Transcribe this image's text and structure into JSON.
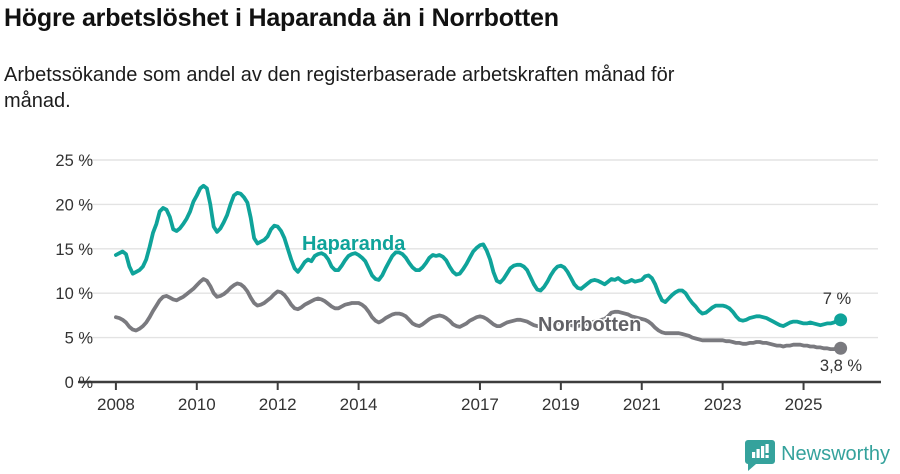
{
  "header": {
    "title": "Högre arbetslöshet i Haparanda än i Norrbotten",
    "subtitle": "Arbetssökande som andel av den registerbaserade arbetskraften månad för månad."
  },
  "colors": {
    "haparanda": "#0fa39a",
    "norrbotten": "#7a7a7f",
    "norrbotten_label": "#626267",
    "grid": "#e3e3e3",
    "axis": "#3d3d3d",
    "tick_text": "#333333",
    "brand": "#35a29c"
  },
  "chart_data": {
    "type": "line",
    "title": "Högre arbetslöshet i Haparanda än i Norrbotten",
    "subtitle": "Arbetssökande som andel av den registerbaserade arbetskraften månad för månad.",
    "unit": "%",
    "frequency": "monthly",
    "x_start": "2008-01",
    "x_end": "2025-12",
    "ylim": [
      0,
      25
    ],
    "grid": true,
    "legend_position": "inline-labels",
    "y_ticks": [
      {
        "value": 0,
        "label": "0 %"
      },
      {
        "value": 5,
        "label": "5 %"
      },
      {
        "value": 10,
        "label": "10 %"
      },
      {
        "value": 15,
        "label": "15 %"
      },
      {
        "value": 20,
        "label": "20 %"
      },
      {
        "value": 25,
        "label": "25 %"
      }
    ],
    "x_ticks": [
      {
        "year": 2008,
        "label": "2008"
      },
      {
        "year": 2010,
        "label": "2010"
      },
      {
        "year": 2012,
        "label": "2012"
      },
      {
        "year": 2014,
        "label": "2014"
      },
      {
        "year": 2017,
        "label": "2017"
      },
      {
        "year": 2019,
        "label": "2019"
      },
      {
        "year": 2021,
        "label": "2021"
      },
      {
        "year": 2023,
        "label": "2023"
      },
      {
        "year": 2025,
        "label": "2025"
      }
    ],
    "series": [
      {
        "name": "Haparanda",
        "end_label": "7 %",
        "end_value": 7.0,
        "values": [
          14.3,
          14.5,
          14.7,
          14.4,
          13.0,
          12.2,
          12.4,
          12.6,
          13.0,
          13.8,
          15.2,
          16.8,
          17.8,
          19.2,
          19.6,
          19.4,
          18.6,
          17.2,
          17.0,
          17.3,
          17.8,
          18.4,
          19.2,
          20.3,
          21.0,
          21.8,
          22.1,
          21.8,
          20.0,
          17.5,
          16.9,
          17.3,
          18.0,
          18.8,
          20.0,
          21.0,
          21.3,
          21.2,
          20.8,
          20.2,
          18.5,
          16.2,
          15.6,
          15.8,
          16.0,
          16.4,
          17.2,
          17.6,
          17.5,
          17.0,
          16.2,
          15.0,
          13.8,
          12.8,
          12.4,
          12.9,
          13.5,
          13.8,
          13.6,
          14.2,
          14.4,
          14.5,
          14.3,
          13.8,
          13.0,
          12.6,
          12.6,
          13.1,
          13.7,
          14.2,
          14.4,
          14.5,
          14.3,
          14.0,
          13.6,
          12.8,
          12.0,
          11.6,
          11.5,
          12.0,
          12.8,
          13.5,
          14.2,
          14.6,
          14.6,
          14.4,
          14.0,
          13.4,
          12.9,
          12.6,
          12.6,
          12.9,
          13.4,
          14.0,
          14.3,
          14.2,
          14.3,
          14.1,
          13.7,
          13.0,
          12.4,
          12.1,
          12.2,
          12.7,
          13.3,
          14.0,
          14.7,
          15.1,
          15.4,
          15.5,
          14.8,
          13.8,
          12.4,
          11.4,
          11.2,
          11.6,
          12.2,
          12.8,
          13.1,
          13.2,
          13.2,
          13.0,
          12.6,
          11.8,
          11.0,
          10.4,
          10.3,
          10.7,
          11.3,
          12.0,
          12.6,
          13.0,
          13.1,
          12.9,
          12.4,
          11.7,
          11.0,
          10.6,
          10.5,
          10.8,
          11.1,
          11.4,
          11.5,
          11.4,
          11.2,
          11.0,
          11.3,
          11.6,
          11.5,
          11.7,
          11.4,
          11.2,
          11.3,
          11.5,
          11.3,
          11.4,
          11.5,
          11.9,
          12.0,
          11.7,
          11.0,
          10.0,
          9.2,
          9.0,
          9.4,
          9.8,
          10.1,
          10.3,
          10.3,
          10.0,
          9.4,
          8.9,
          8.5,
          8.0,
          7.7,
          7.8,
          8.1,
          8.4,
          8.6,
          8.6,
          8.6,
          8.5,
          8.3,
          7.9,
          7.4,
          7.0,
          6.9,
          7.0,
          7.2,
          7.3,
          7.4,
          7.4,
          7.3,
          7.2,
          7.0,
          6.8,
          6.6,
          6.4,
          6.3,
          6.5,
          6.7,
          6.8,
          6.8,
          6.7,
          6.6,
          6.6,
          6.7,
          6.6,
          6.5,
          6.4,
          6.5,
          6.6,
          6.6,
          6.7,
          6.9,
          7.0
        ]
      },
      {
        "name": "Norrbotten",
        "end_label": "3,8 %",
        "end_value": 3.8,
        "values": [
          7.3,
          7.2,
          7.0,
          6.7,
          6.2,
          5.9,
          5.8,
          6.0,
          6.3,
          6.7,
          7.3,
          8.0,
          8.6,
          9.2,
          9.6,
          9.7,
          9.5,
          9.3,
          9.2,
          9.4,
          9.6,
          9.9,
          10.2,
          10.5,
          10.9,
          11.3,
          11.6,
          11.4,
          10.8,
          10.0,
          9.6,
          9.7,
          9.9,
          10.2,
          10.6,
          10.9,
          11.1,
          11.0,
          10.7,
          10.2,
          9.5,
          8.9,
          8.6,
          8.7,
          8.9,
          9.2,
          9.5,
          9.9,
          10.2,
          10.1,
          9.8,
          9.3,
          8.7,
          8.3,
          8.2,
          8.4,
          8.7,
          8.9,
          9.1,
          9.3,
          9.4,
          9.3,
          9.1,
          8.8,
          8.5,
          8.3,
          8.3,
          8.5,
          8.7,
          8.8,
          8.9,
          8.9,
          8.9,
          8.7,
          8.4,
          7.9,
          7.3,
          6.9,
          6.7,
          6.9,
          7.2,
          7.4,
          7.6,
          7.7,
          7.7,
          7.6,
          7.4,
          7.0,
          6.6,
          6.4,
          6.3,
          6.5,
          6.8,
          7.1,
          7.3,
          7.4,
          7.5,
          7.4,
          7.2,
          6.9,
          6.5,
          6.3,
          6.2,
          6.4,
          6.6,
          6.9,
          7.1,
          7.3,
          7.4,
          7.3,
          7.1,
          6.8,
          6.5,
          6.3,
          6.3,
          6.5,
          6.7,
          6.8,
          6.9,
          7.0,
          7.0,
          6.9,
          6.8,
          6.6,
          6.4,
          6.3,
          6.3,
          6.4,
          6.5,
          6.6,
          6.7,
          6.7,
          6.7,
          6.6,
          6.5,
          6.4,
          6.3,
          6.3,
          6.4,
          6.5,
          6.6,
          6.7,
          6.8,
          6.9,
          7.0,
          7.1,
          7.4,
          7.8,
          7.9,
          7.9,
          7.8,
          7.7,
          7.6,
          7.4,
          7.3,
          7.2,
          7.1,
          7.0,
          6.8,
          6.5,
          6.1,
          5.8,
          5.6,
          5.5,
          5.5,
          5.5,
          5.5,
          5.5,
          5.4,
          5.3,
          5.2,
          5.0,
          4.9,
          4.8,
          4.7,
          4.7,
          4.7,
          4.7,
          4.7,
          4.7,
          4.7,
          4.6,
          4.6,
          4.5,
          4.4,
          4.4,
          4.3,
          4.3,
          4.4,
          4.4,
          4.5,
          4.5,
          4.4,
          4.4,
          4.3,
          4.2,
          4.1,
          4.1,
          4.0,
          4.1,
          4.1,
          4.2,
          4.2,
          4.2,
          4.1,
          4.1,
          4.0,
          4.0,
          3.9,
          3.9,
          3.8,
          3.8,
          3.7,
          3.7,
          3.8,
          3.8
        ]
      }
    ]
  },
  "footer": {
    "brand": "Newsworthy",
    "logo_icon": "newsworthy-speech-bubble-bar-chart-icon"
  }
}
